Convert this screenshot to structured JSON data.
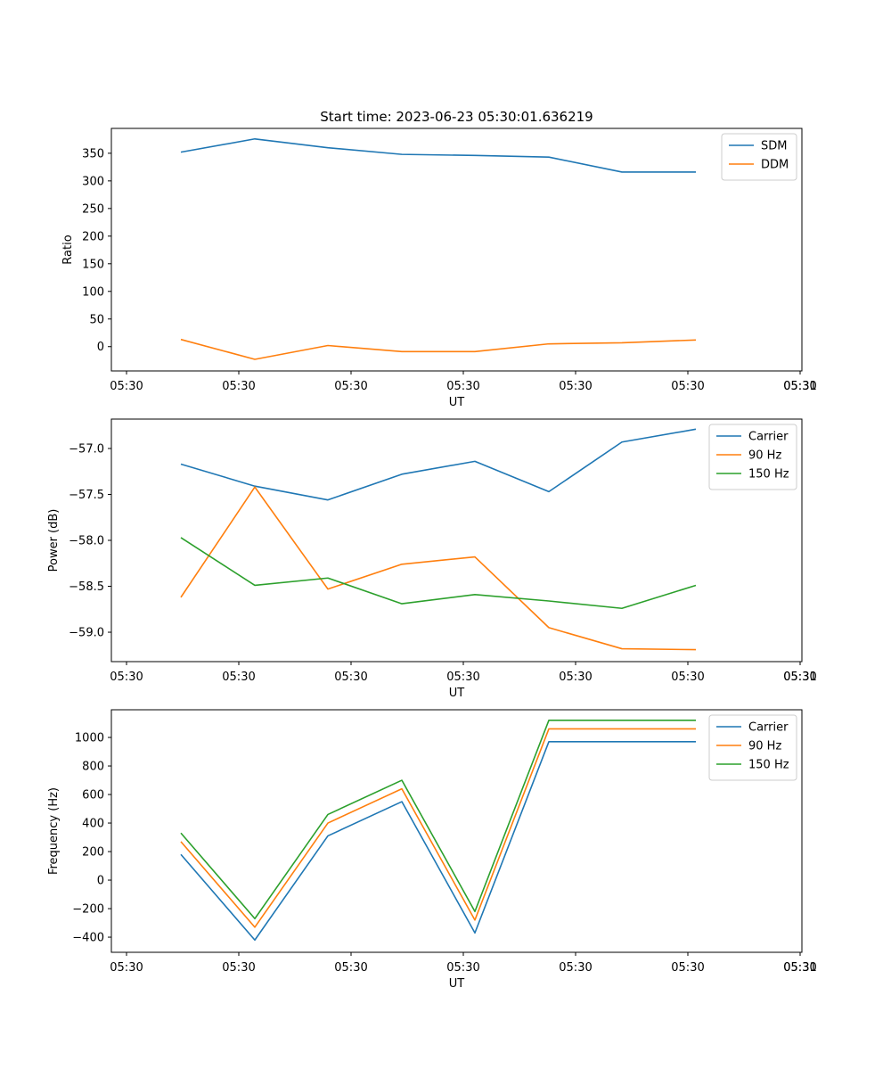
{
  "figure": {
    "title": "Start time: 2023-06-23 05:30:01.636219"
  },
  "colors": {
    "blue": "#1f77b4",
    "orange": "#ff7f0e",
    "green": "#2ca02c"
  },
  "chart_data": [
    {
      "type": "line",
      "title": "Start time: 2023-06-23 05:30:01.636219",
      "xlabel": "UT",
      "ylabel": "Ratio",
      "x_tick_labels": [
        "05:30",
        "05:30",
        "05:30",
        "05:30",
        "05:30",
        "05:30",
        "05:30",
        "05:31"
      ],
      "y_ticks": [
        0,
        50,
        100,
        150,
        200,
        250,
        300,
        350
      ],
      "ylim": [
        -44,
        395
      ],
      "legend_position": "top-right",
      "series": [
        {
          "name": "SDM",
          "color": "#1f77b4",
          "values": [
            352,
            376,
            360,
            348,
            346,
            343,
            316,
            316
          ]
        },
        {
          "name": "DDM",
          "color": "#ff7f0e",
          "values": [
            13,
            -23,
            2,
            -9,
            -9,
            5,
            7,
            12
          ]
        }
      ]
    },
    {
      "type": "line",
      "xlabel": "UT",
      "ylabel": "Power (dB)",
      "x_tick_labels": [
        "05:30",
        "05:30",
        "05:30",
        "05:30",
        "05:30",
        "05:30",
        "05:30",
        "05:31"
      ],
      "y_ticks": [
        -57.0,
        -57.5,
        -58.0,
        -58.5,
        -59.0
      ],
      "y_tick_labels": [
        "−57.0",
        "−57.5",
        "−58.0",
        "−58.5",
        "−59.0"
      ],
      "ylim": [
        -59.32,
        -56.68
      ],
      "legend_position": "top-right",
      "series": [
        {
          "name": "Carrier",
          "color": "#1f77b4",
          "values": [
            -57.17,
            -57.41,
            -57.56,
            -57.28,
            -57.14,
            -57.47,
            -56.93,
            -56.79
          ]
        },
        {
          "name": "90 Hz",
          "color": "#ff7f0e",
          "values": [
            -58.62,
            -57.42,
            -58.53,
            -58.26,
            -58.18,
            -58.95,
            -59.18,
            -59.19
          ]
        },
        {
          "name": "150 Hz",
          "color": "#2ca02c",
          "values": [
            -57.97,
            -58.49,
            -58.41,
            -58.69,
            -58.59,
            -58.66,
            -58.74,
            -58.49
          ]
        }
      ]
    },
    {
      "type": "line",
      "xlabel": "UT",
      "ylabel": "Frequency (Hz)",
      "x_tick_labels": [
        "05:30",
        "05:30",
        "05:30",
        "05:30",
        "05:30",
        "05:30",
        "05:30",
        "05:31"
      ],
      "y_ticks": [
        -400,
        -200,
        0,
        200,
        400,
        600,
        800,
        1000
      ],
      "y_tick_labels": [
        "−400",
        "−200",
        "0",
        "200",
        "400",
        "600",
        "800",
        "1000"
      ],
      "ylim": [
        -506,
        1194
      ],
      "legend_position": "top-right",
      "series": [
        {
          "name": "Carrier",
          "color": "#1f77b4",
          "values": [
            180,
            -420,
            310,
            550,
            -370,
            970,
            970,
            970
          ]
        },
        {
          "name": "90 Hz",
          "color": "#ff7f0e",
          "values": [
            270,
            -330,
            400,
            640,
            -280,
            1060,
            1060,
            1060
          ]
        },
        {
          "name": "150 Hz",
          "color": "#2ca02c",
          "values": [
            330,
            -270,
            460,
            700,
            -220,
            1120,
            1120,
            1120
          ]
        }
      ]
    }
  ]
}
